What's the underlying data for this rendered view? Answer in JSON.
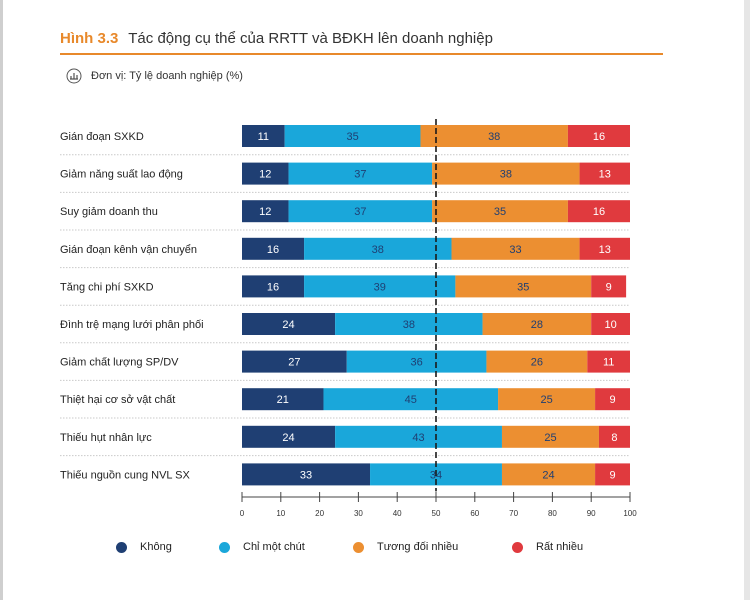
{
  "figure": {
    "label": "Hình 3.3",
    "title": "Tác động cụ thể của RRTT và BĐKH lên doanh nghiệp",
    "unit_label": "Đơn vị: Tỷ lệ doanh nghiệp (%)",
    "unit_icon": "chart-unit-icon"
  },
  "chart_data": {
    "type": "bar",
    "orientation": "horizontal",
    "stacked": true,
    "title": "Tác động cụ thể của RRTT và BĐKH lên doanh nghiệp",
    "xlabel": "",
    "ylabel": "",
    "xlim": [
      0,
      100
    ],
    "xticks": [
      0,
      10,
      20,
      30,
      40,
      50,
      60,
      70,
      80,
      90,
      100
    ],
    "reference_line": 50,
    "grid": false,
    "legend_position": "bottom",
    "categories": [
      "Gián đoạn SXKD",
      "Giảm năng suất lao động",
      "Suy giảm doanh thu",
      "Gián đoạn kênh vận chuyển",
      "Tăng chi phí SXKD",
      "Đình trệ mạng lưới phân phối",
      "Giảm chất lượng SP/DV",
      "Thiệt hại cơ sở vật chất",
      "Thiếu hụt nhân lực",
      "Thiếu nguồn cung NVL SX"
    ],
    "series": [
      {
        "name": "Không",
        "color": "#1f3f73",
        "label_color": "#ffffff",
        "values": [
          11,
          12,
          12,
          16,
          16,
          24,
          27,
          21,
          24,
          33
        ]
      },
      {
        "name": "Chỉ một chút",
        "color": "#1aa7da",
        "label_color": "#1f3f73",
        "values": [
          35,
          37,
          37,
          38,
          39,
          38,
          36,
          45,
          43,
          34
        ]
      },
      {
        "name": "Tương đối nhiều",
        "color": "#ec8f31",
        "label_color": "#1f3f73",
        "values": [
          38,
          38,
          35,
          33,
          35,
          28,
          26,
          25,
          25,
          24
        ]
      },
      {
        "name": "Rất nhiều",
        "color": "#e03a3e",
        "label_color": "#ffffff",
        "values": [
          16,
          13,
          16,
          13,
          9,
          10,
          11,
          9,
          8,
          9
        ]
      }
    ]
  }
}
